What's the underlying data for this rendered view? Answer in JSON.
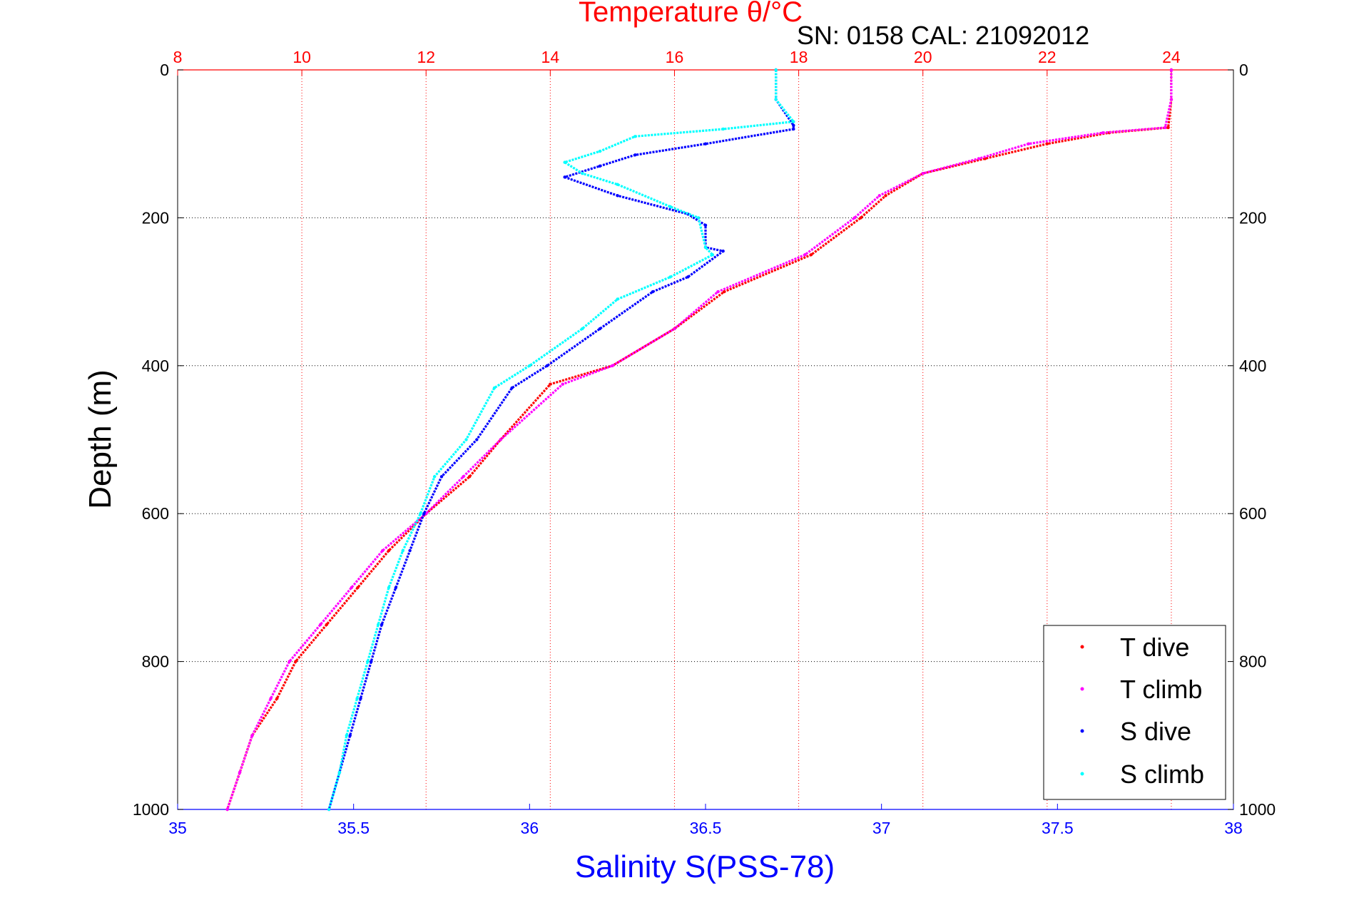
{
  "chart_data": {
    "type": "scatter",
    "title": "Temperature θ/°C",
    "subtitle": "SN: 0158  CAL: 21092012",
    "xlabel": "Salinity S(PSS-78)",
    "ylabel": "Depth (m)",
    "x_temp_range": [
      8,
      25
    ],
    "x_temp_ticks": [
      "8",
      "10",
      "12",
      "14",
      "16",
      "18",
      "20",
      "22",
      "24"
    ],
    "x_sal_range": [
      35,
      38
    ],
    "x_sal_ticks": [
      "35",
      "35.5",
      "36",
      "36.5",
      "37",
      "37.5",
      "38"
    ],
    "ylim": [
      0,
      1000
    ],
    "y_ticks": [
      "0",
      "200",
      "400",
      "600",
      "800",
      "1000"
    ],
    "grid": true,
    "legend_position": "bottom-right",
    "colors": {
      "temperature_axis": "#ff0000",
      "salinity_axis": "#0000ff",
      "t_dive": "#ff0000",
      "t_climb": "#ff00ff",
      "s_dive": "#0000ff",
      "s_climb": "#00ffff"
    },
    "series": [
      {
        "name": "T dive",
        "axis": "temperature",
        "color": "#ff0000",
        "depth": [
          0,
          40,
          78,
          85,
          100,
          120,
          140,
          170,
          200,
          250,
          300,
          350,
          400,
          425,
          500,
          550,
          600,
          650,
          700,
          750,
          800,
          850,
          900,
          950,
          1000
        ],
        "temp": [
          24.0,
          24.0,
          23.95,
          23.0,
          22.0,
          21.0,
          20.0,
          19.4,
          19.0,
          18.2,
          16.8,
          16.0,
          15.0,
          14.0,
          13.2,
          12.7,
          12.0,
          11.4,
          10.9,
          10.4,
          9.9,
          9.6,
          9.2,
          9.0,
          8.8
        ]
      },
      {
        "name": "T climb",
        "axis": "temperature",
        "color": "#ff00ff",
        "depth": [
          0,
          40,
          78,
          85,
          100,
          120,
          140,
          170,
          200,
          250,
          300,
          350,
          400,
          425,
          500,
          550,
          600,
          650,
          700,
          750,
          800,
          850,
          900,
          950,
          1000
        ],
        "temp": [
          24.0,
          24.0,
          23.9,
          22.9,
          21.7,
          20.9,
          20.0,
          19.3,
          18.9,
          18.1,
          16.7,
          16.0,
          15.0,
          14.2,
          13.2,
          12.6,
          12.0,
          11.3,
          10.8,
          10.3,
          9.8,
          9.5,
          9.2,
          9.0,
          8.8
        ]
      },
      {
        "name": "S dive",
        "axis": "salinity",
        "color": "#0000ff",
        "depth": [
          0,
          40,
          75,
          80,
          100,
          115,
          130,
          145,
          170,
          195,
          210,
          240,
          245,
          280,
          300,
          350,
          400,
          430,
          500,
          550,
          600,
          650,
          700,
          750,
          800,
          850,
          900,
          950,
          1000
        ],
        "sal": [
          36.7,
          36.7,
          36.75,
          36.75,
          36.5,
          36.3,
          36.2,
          36.1,
          36.25,
          36.45,
          36.5,
          36.5,
          36.55,
          36.45,
          36.35,
          36.2,
          36.05,
          35.95,
          35.85,
          35.75,
          35.7,
          35.66,
          35.62,
          35.58,
          35.55,
          35.52,
          35.49,
          35.46,
          35.43
        ]
      },
      {
        "name": "S climb",
        "axis": "salinity",
        "color": "#00ffff",
        "depth": [
          0,
          40,
          70,
          80,
          90,
          110,
          125,
          140,
          155,
          185,
          200,
          240,
          250,
          280,
          310,
          350,
          400,
          430,
          500,
          550,
          600,
          650,
          700,
          750,
          800,
          850,
          900,
          950,
          1000
        ],
        "sal": [
          36.7,
          36.7,
          36.75,
          36.55,
          36.3,
          36.2,
          36.1,
          36.15,
          36.25,
          36.4,
          36.48,
          36.5,
          36.52,
          36.4,
          36.25,
          36.15,
          36.0,
          35.9,
          35.82,
          35.73,
          35.69,
          35.64,
          35.6,
          35.57,
          35.54,
          35.51,
          35.48,
          35.46,
          35.43
        ]
      }
    ]
  }
}
